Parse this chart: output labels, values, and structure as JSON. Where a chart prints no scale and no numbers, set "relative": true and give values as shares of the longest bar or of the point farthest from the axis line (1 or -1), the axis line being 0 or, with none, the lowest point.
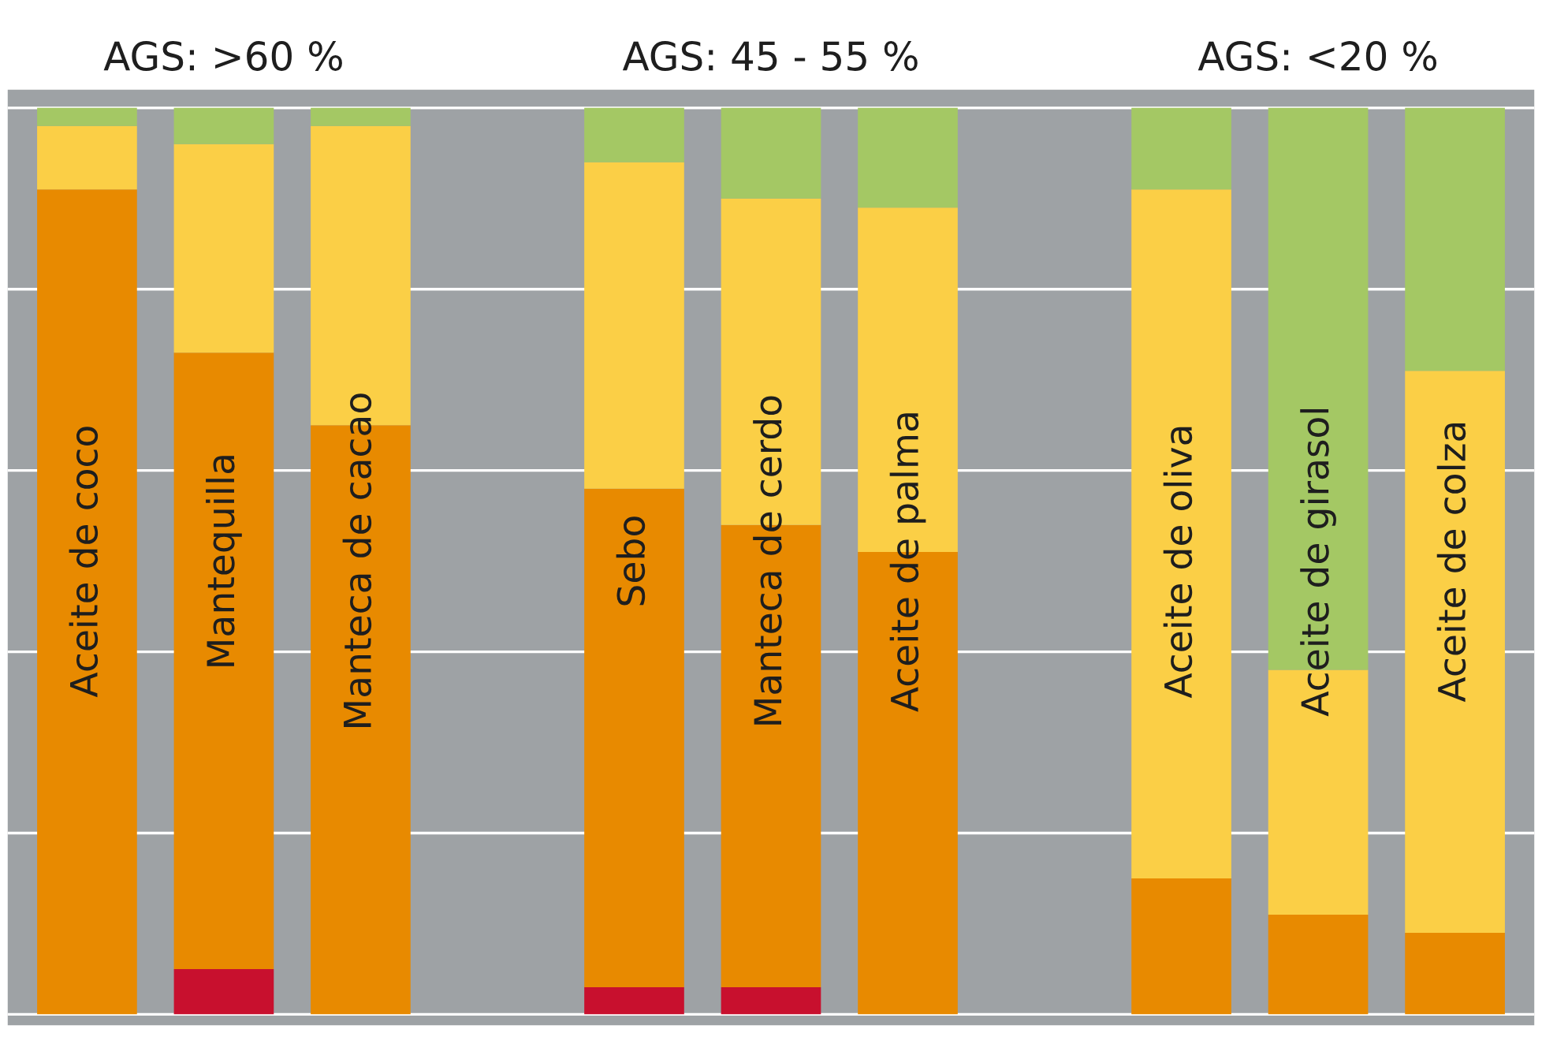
{
  "chart_data": {
    "type": "bar",
    "relative": true,
    "stacked": true,
    "grid": "y",
    "categories": [
      "Aceite de coco",
      "Mantequilla",
      "Manteca de cacao",
      null,
      "Sebo",
      "Manteca de cerdo",
      "Aceite de palma",
      null,
      "Aceite de oliva",
      "Aceite de girasol",
      "Aceite de colza"
    ],
    "series": [
      {
        "color": "#c8102e",
        "values": [
          null,
          0.05,
          null,
          null,
          0.03,
          0.03,
          null,
          null,
          null,
          null,
          null
        ]
      },
      {
        "color": "#e88a00",
        "values": [
          0.91,
          0.68,
          0.65,
          null,
          0.55,
          0.51,
          0.51,
          null,
          0.15,
          0.11,
          0.09
        ]
      },
      {
        "color": "#fbcf46",
        "values": [
          0.07,
          0.23,
          0.33,
          null,
          0.36,
          0.36,
          0.38,
          null,
          0.76,
          0.27,
          0.62
        ]
      },
      {
        "color": "#a4c864",
        "values": [
          0.02,
          0.04,
          0.02,
          null,
          0.06,
          0.1,
          0.11,
          null,
          0.09,
          0.62,
          0.29
        ]
      }
    ],
    "annotations": [
      "AGS: >60 %",
      "AGS: 45 - 55 %",
      "AGS: <20 %"
    ]
  }
}
